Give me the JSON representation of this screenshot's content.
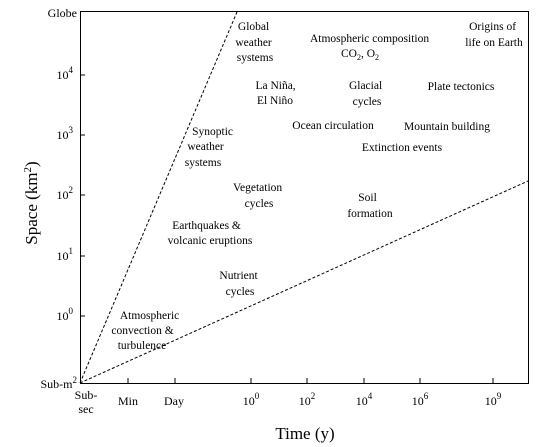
{
  "axes": {
    "x_title": "Time  (y)",
    "y_title_base": "Space  (km",
    "y_title_sup": "2",
    "y_title_close": ")",
    "x_ticks": [
      {
        "label": "Sub-",
        "label2": "sec"
      },
      {
        "label": "Min"
      },
      {
        "label": "Day"
      },
      {
        "base": "10",
        "exp": "0"
      },
      {
        "base": "10",
        "exp": "2"
      },
      {
        "base": "10",
        "exp": "4"
      },
      {
        "base": "10",
        "exp": "6"
      },
      {
        "base": "10",
        "exp": "9"
      }
    ],
    "y_ticks": [
      {
        "label": "Sub-m",
        "sup": "2"
      },
      {
        "base": "10",
        "exp": "0"
      },
      {
        "base": "10",
        "exp": "1"
      },
      {
        "base": "10",
        "exp": "2"
      },
      {
        "base": "10",
        "exp": "3"
      },
      {
        "base": "10",
        "exp": "4"
      },
      {
        "label": "Globe"
      }
    ]
  },
  "phenomena": {
    "global_weather": [
      "Global",
      "weather",
      "systems"
    ],
    "atmospheric_composition": {
      "line1": "Atmospheric composition",
      "line2": "CO",
      "sub1": "2",
      "sep": ", O",
      "sub2": "2"
    },
    "origins_of_life": [
      "Origins of",
      "life on Earth"
    ],
    "la_nina": [
      "La Niña,",
      "El Niño"
    ],
    "glacial_cycles": [
      "Glacial",
      "cycles"
    ],
    "plate_tectonics": [
      "Plate tectonics"
    ],
    "synoptic_weather": [
      "Synoptic",
      "weather",
      "systems"
    ],
    "ocean_circulation": [
      "Ocean circulation"
    ],
    "mountain_building": [
      "Mountain building"
    ],
    "extinction_events": [
      "Extinction events"
    ],
    "vegetation_cycles": [
      "Vegetation",
      "cycles"
    ],
    "soil_formation": [
      "Soil",
      "formation"
    ],
    "earthquakes": [
      "Earthquakes &",
      "volcanic eruptions"
    ],
    "nutrient_cycles": [
      "Nutrient",
      "cycles"
    ],
    "atmospheric_convection": [
      "Atmospheric",
      "convection &",
      "turbulence"
    ]
  }
}
